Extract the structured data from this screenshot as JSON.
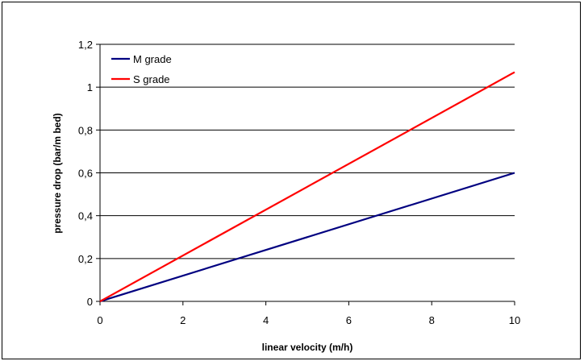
{
  "chart_data": {
    "type": "line",
    "title": "",
    "xlabel": "linear velocity (m/h)",
    "ylabel": "pressure drop (bar/m bed)",
    "xlim": [
      0,
      10
    ],
    "ylim": [
      0,
      1.2
    ],
    "x_ticks": [
      "0",
      "2",
      "4",
      "6",
      "8",
      "10"
    ],
    "y_ticks": [
      "0",
      "0,2",
      "0,4",
      "0,6",
      "0,8",
      "1",
      "1,2"
    ],
    "grid": "horizontal",
    "legend_position": "top-left",
    "series": [
      {
        "name": "M grade",
        "color": "#000080",
        "x": [
          0,
          10
        ],
        "y": [
          0,
          0.6
        ]
      },
      {
        "name": "S grade",
        "color": "#ff0000",
        "x": [
          0,
          10
        ],
        "y": [
          0,
          1.07
        ]
      }
    ]
  }
}
